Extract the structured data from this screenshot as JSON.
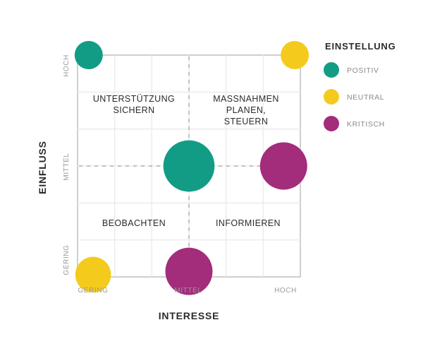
{
  "chart_data": {
    "type": "scatter",
    "xlabel": "INTERESSE",
    "ylabel": "EINFLUSS",
    "xlim": [
      0,
      2
    ],
    "ylim": [
      0,
      2
    ],
    "x_ticks": [
      "GERING",
      "MITTEL",
      "HOCH"
    ],
    "y_ticks": [
      "GERING",
      "MITTEL",
      "HOCH"
    ],
    "grid": true,
    "divider_lines": {
      "x": 1,
      "y": 1
    },
    "quadrant_labels": {
      "top_left": [
        "UNTERSTÜTZUNG",
        "SICHERN"
      ],
      "top_right": [
        "MASSNAHMEN",
        "PLANEN,",
        "STEUERN"
      ],
      "bottom_left": [
        "BEOBACHTEN"
      ],
      "bottom_right": [
        "INFORMIEREN"
      ]
    },
    "legend": {
      "title": "EINSTELLUNG",
      "position": "right",
      "items": [
        {
          "label": "POSITIV",
          "color": "#129c86"
        },
        {
          "label": "NEUTRAL",
          "color": "#f4cb1d"
        },
        {
          "label": "KRITISCH",
          "color": "#a32c7b"
        }
      ]
    },
    "points": [
      {
        "x": 0.1,
        "y": 2.0,
        "size": 1,
        "category": "POSITIV"
      },
      {
        "x": 1.95,
        "y": 2.0,
        "size": 1,
        "category": "NEUTRAL"
      },
      {
        "x": 1.0,
        "y": 1.0,
        "size": 3.3,
        "category": "POSITIV"
      },
      {
        "x": 1.85,
        "y": 1.0,
        "size": 2.8,
        "category": "KRITISCH"
      },
      {
        "x": 0.14,
        "y": 0.02,
        "size": 1.6,
        "category": "NEUTRAL"
      },
      {
        "x": 1.0,
        "y": 0.05,
        "size": 2.8,
        "category": "KRITISCH"
      }
    ]
  }
}
